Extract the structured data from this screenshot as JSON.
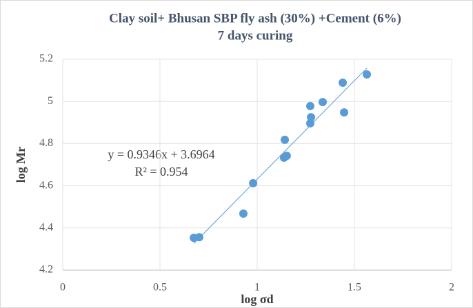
{
  "chart_data": {
    "type": "scatter",
    "title": "Clay soil+ Bhusan SBP fly ash (30%) +Cement (6%)",
    "subtitle": "7 days curing",
    "x_label": "log σd",
    "y_label": "log Mr",
    "series": [
      {
        "name": "log Mr",
        "color": "#5b9bd5",
        "x": [
          0.674,
          0.702,
          0.929,
          0.979,
          1.142,
          1.138,
          1.152,
          1.273,
          1.277,
          1.273,
          1.337,
          1.44,
          1.447,
          1.564
        ],
        "values": [
          4.353,
          4.356,
          4.468,
          4.612,
          4.818,
          4.733,
          4.742,
          4.978,
          4.925,
          4.896,
          4.997,
          5.089,
          4.948,
          5.128
        ]
      }
    ],
    "trendline": {
      "slope": 0.9346,
      "intercept": 3.6964,
      "equation": "y = 0.9346x + 3.6964",
      "r_squared": "R² = 0.954"
    },
    "xlim": [
      0,
      2
    ],
    "xticks": [
      0,
      0.5,
      1,
      1.5,
      2
    ],
    "ylim": [
      4.2,
      5.2
    ],
    "yticks": [
      4.2,
      4.4,
      4.6,
      4.8,
      5,
      5.2
    ],
    "grid": true
  }
}
